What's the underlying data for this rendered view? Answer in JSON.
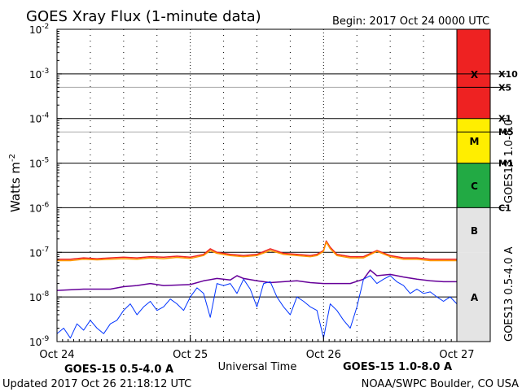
{
  "chart_data": {
    "type": "line",
    "title": "GOES Xray Flux (1-minute data)",
    "begin_label": "Begin:  2017 Oct 24 0000 UTC",
    "ylabel_base": "Watts m",
    "ylabel_exp": "-2",
    "xlabel": "Universal Time",
    "y_scale": "log",
    "ylim": [
      1e-09,
      0.01
    ],
    "y_ticks": [
      {
        "base": "10",
        "exp": "-9",
        "value": 1e-09
      },
      {
        "base": "10",
        "exp": "-8",
        "value": 1e-08
      },
      {
        "base": "10",
        "exp": "-7",
        "value": 1e-07
      },
      {
        "base": "10",
        "exp": "-6",
        "value": 1e-06
      },
      {
        "base": "10",
        "exp": "-5",
        "value": 1e-05
      },
      {
        "base": "10",
        "exp": "-4",
        "value": 0.0001
      },
      {
        "base": "10",
        "exp": "-3",
        "value": 0.001
      },
      {
        "base": "10",
        "exp": "-2",
        "value": 0.01
      }
    ],
    "xlim_days": [
      0,
      3
    ],
    "x_ticks": [
      {
        "label": "Oct 24",
        "day": 0
      },
      {
        "label": "Oct 25",
        "day": 1
      },
      {
        "label": "Oct 26",
        "day": 2
      },
      {
        "label": "Oct 27",
        "day": 3
      }
    ],
    "flare_levels": [
      {
        "label": "X10",
        "value": 0.001
      },
      {
        "label": "X5",
        "value": 0.0005
      },
      {
        "label": "X1",
        "value": 0.0001
      },
      {
        "label": "M5",
        "value": 5e-05
      },
      {
        "label": "M1",
        "value": 1e-05
      },
      {
        "label": "C1",
        "value": 1e-06
      }
    ],
    "class_bands": [
      {
        "label": "X",
        "from": 0.0001,
        "to": 0.01,
        "color": "#ee2222"
      },
      {
        "label": "M",
        "from": 1e-05,
        "to": 0.0001,
        "color": "#ffee00"
      },
      {
        "label": "C",
        "from": 1e-06,
        "to": 1e-05,
        "color": "#22aa44"
      },
      {
        "label": "B",
        "from": 1e-07,
        "to": 1e-06,
        "color": "#e4e4e4"
      },
      {
        "label": "A",
        "from": 1e-09,
        "to": 1e-07,
        "color": "#e4e4e4"
      }
    ],
    "right_labels": [
      {
        "text": "GOES13 0.5-4.0 A",
        "color": "#660099"
      },
      {
        "text": "GOES13 1.0-8.0",
        "color": "#ff9900"
      }
    ],
    "series": [
      {
        "name": "GOES-15 1.0-8.0 A",
        "color": "#ee2222",
        "x": [
          0,
          0.1,
          0.2,
          0.3,
          0.4,
          0.5,
          0.6,
          0.7,
          0.8,
          0.9,
          1.0,
          1.1,
          1.15,
          1.2,
          1.3,
          1.4,
          1.5,
          1.6,
          1.7,
          1.8,
          1.9,
          1.95,
          2.0,
          2.02,
          2.05,
          2.1,
          2.2,
          2.3,
          2.4,
          2.5,
          2.6,
          2.7,
          2.8,
          2.9,
          3.0
        ],
        "y": [
          7e-08,
          7e-08,
          7.5e-08,
          7.2e-08,
          7.5e-08,
          7.8e-08,
          7.5e-08,
          8e-08,
          7.8e-08,
          8.2e-08,
          7.8e-08,
          9e-08,
          1.2e-07,
          1e-07,
          9e-08,
          8.5e-08,
          9e-08,
          1.2e-07,
          9.5e-08,
          9e-08,
          8.5e-08,
          9e-08,
          1.1e-07,
          1.8e-07,
          1.3e-07,
          9e-08,
          8e-08,
          8e-08,
          1.1e-07,
          8.5e-08,
          7.5e-08,
          7.5e-08,
          7e-08,
          7e-08,
          7e-08
        ]
      },
      {
        "name": "GOES13 1.0-8.0",
        "color": "#ff9900",
        "x": [
          0,
          0.1,
          0.2,
          0.3,
          0.4,
          0.5,
          0.6,
          0.7,
          0.8,
          0.9,
          1.0,
          1.1,
          1.15,
          1.2,
          1.3,
          1.4,
          1.5,
          1.6,
          1.7,
          1.8,
          1.9,
          1.95,
          2.0,
          2.02,
          2.05,
          2.1,
          2.2,
          2.3,
          2.4,
          2.5,
          2.6,
          2.7,
          2.8,
          2.9,
          3.0
        ],
        "y": [
          6.5e-08,
          6.5e-08,
          7e-08,
          6.8e-08,
          7e-08,
          7.2e-08,
          7e-08,
          7.5e-08,
          7.2e-08,
          7.7e-08,
          7.3e-08,
          8.5e-08,
          1.1e-07,
          9.5e-08,
          8.5e-08,
          8e-08,
          8.5e-08,
          1.1e-07,
          9e-08,
          8.5e-08,
          8e-08,
          8.5e-08,
          1.05e-07,
          1.7e-07,
          1.2e-07,
          8.5e-08,
          7.5e-08,
          7.5e-08,
          1.05e-07,
          8e-08,
          7e-08,
          7e-08,
          6.5e-08,
          6.5e-08,
          6.5e-08
        ]
      },
      {
        "name": "GOES13 0.5-4.0 A",
        "color": "#660099",
        "x": [
          0,
          0.2,
          0.4,
          0.5,
          0.6,
          0.7,
          0.8,
          1.0,
          1.1,
          1.2,
          1.3,
          1.35,
          1.4,
          1.5,
          1.6,
          1.7,
          1.8,
          1.9,
          2.0,
          2.2,
          2.3,
          2.35,
          2.4,
          2.5,
          2.6,
          2.7,
          2.8,
          2.9,
          3.0
        ],
        "y": [
          1.4e-08,
          1.5e-08,
          1.5e-08,
          1.7e-08,
          1.8e-08,
          2e-08,
          1.8e-08,
          1.9e-08,
          2.3e-08,
          2.6e-08,
          2.4e-08,
          3e-08,
          2.6e-08,
          2.3e-08,
          2.1e-08,
          2.2e-08,
          2.3e-08,
          2.1e-08,
          2e-08,
          2e-08,
          2.5e-08,
          4e-08,
          3e-08,
          3.2e-08,
          2.8e-08,
          2.5e-08,
          2.3e-08,
          2.2e-08,
          2.2e-08
        ]
      },
      {
        "name": "GOES-15 0.5-4.0 A",
        "color": "#0033ff",
        "x": [
          0,
          0.05,
          0.1,
          0.15,
          0.2,
          0.25,
          0.3,
          0.35,
          0.4,
          0.45,
          0.5,
          0.55,
          0.6,
          0.65,
          0.7,
          0.75,
          0.8,
          0.85,
          0.9,
          0.95,
          1.0,
          1.05,
          1.1,
          1.15,
          1.2,
          1.25,
          1.3,
          1.35,
          1.4,
          1.45,
          1.5,
          1.55,
          1.6,
          1.65,
          1.7,
          1.75,
          1.8,
          1.85,
          1.9,
          1.95,
          2.0,
          2.05,
          2.1,
          2.15,
          2.2,
          2.25,
          2.3,
          2.35,
          2.4,
          2.45,
          2.5,
          2.55,
          2.6,
          2.65,
          2.7,
          2.75,
          2.8,
          2.85,
          2.9,
          2.95,
          3.0
        ],
        "y": [
          1.5e-09,
          2e-09,
          1.2e-09,
          2.5e-09,
          1.8e-09,
          3e-09,
          2e-09,
          1.5e-09,
          2.5e-09,
          3e-09,
          5e-09,
          7e-09,
          4e-09,
          6e-09,
          8e-09,
          5e-09,
          6e-09,
          9e-09,
          7e-09,
          5e-09,
          1e-08,
          1.6e-08,
          1.2e-08,
          3.5e-09,
          2e-08,
          1.8e-08,
          2e-08,
          1.2e-08,
          2.5e-08,
          1.5e-08,
          6e-09,
          2e-08,
          2.2e-08,
          1e-08,
          6e-09,
          4e-09,
          1e-08,
          8e-09,
          6e-09,
          5e-09,
          1.2e-09,
          7e-09,
          5e-09,
          3e-09,
          2e-09,
          6e-09,
          2.5e-08,
          3e-08,
          2e-08,
          2.5e-08,
          3e-08,
          2.2e-08,
          1.8e-08,
          1.2e-08,
          1.5e-08,
          1.2e-08,
          1.3e-08,
          1e-08,
          8e-09,
          1e-08,
          7e-09
        ]
      }
    ],
    "legend": [
      {
        "text": "GOES-15 0.5-4.0 A",
        "color": "#0033dd"
      },
      {
        "text": "GOES-15 1.0-8.0 A",
        "color": "#ee2222"
      }
    ]
  },
  "footer": {
    "updated": "Updated 2017 Oct 26 21:18:12 UTC",
    "source": "NOAA/SWPC Boulder, CO USA"
  }
}
